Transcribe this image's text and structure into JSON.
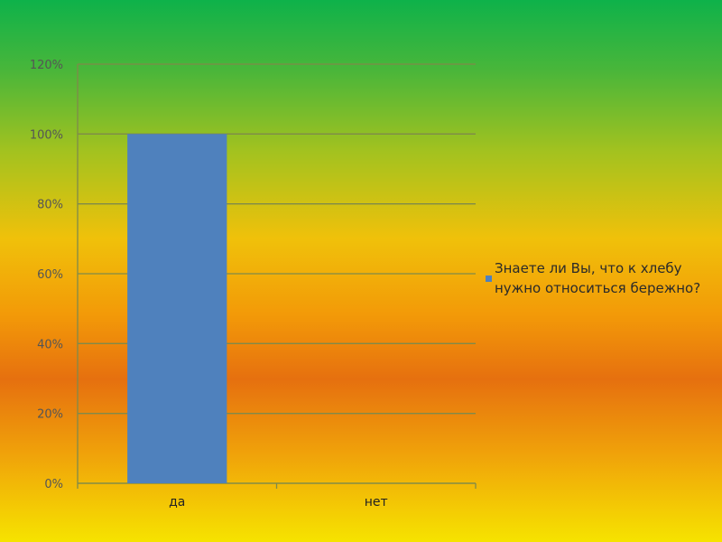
{
  "chart_data": {
    "type": "bar",
    "categories": [
      "да",
      "нет"
    ],
    "series": [
      {
        "name": "Знаете ли Вы, что к хлебу нужно относиться бережно?",
        "values": [
          1.0,
          0.0
        ],
        "color": "#4f81bd"
      }
    ],
    "y_ticks": [
      "0%",
      "20%",
      "40%",
      "60%",
      "80%",
      "100%",
      "120%"
    ],
    "ylim": [
      0,
      1.2
    ],
    "y_tick_step": 0.2,
    "grid": true,
    "legend_position": "right"
  },
  "colors": {
    "grid": "#7f8a4a",
    "axis": "#7f8a4a"
  }
}
